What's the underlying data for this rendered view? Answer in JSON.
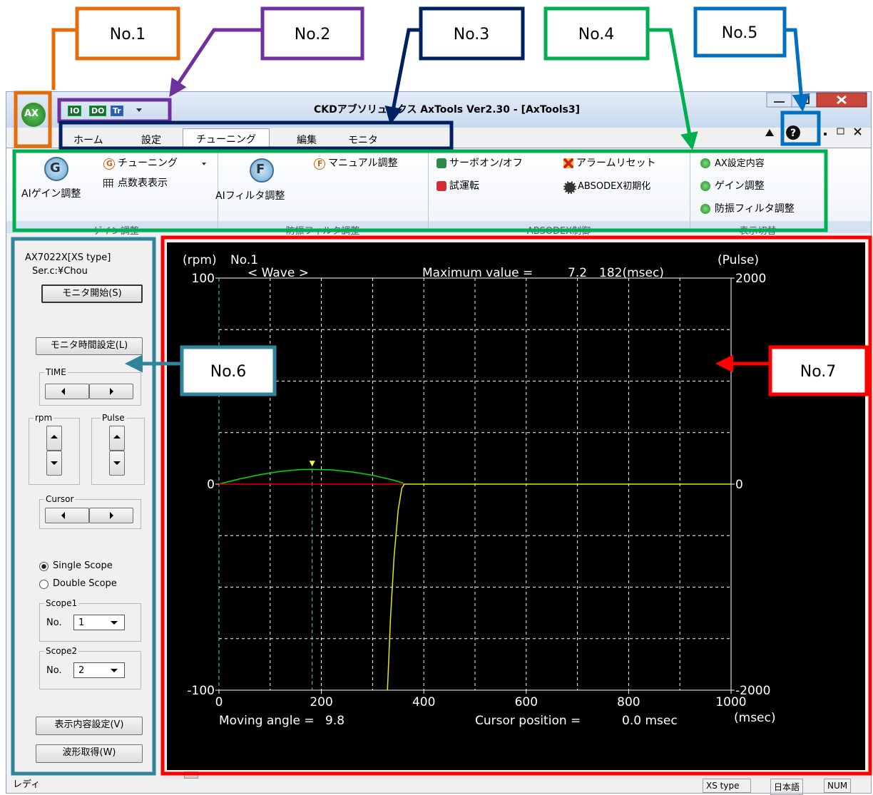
{
  "callouts": [
    "No.1",
    "No.2",
    "No.3",
    "No.4",
    "No.5",
    "No.6",
    "No.7"
  ],
  "window": {
    "logo": "AX",
    "quick_access": [
      "IO",
      "DO",
      "Tr"
    ],
    "title": "CKDアブソリュックス AxTools Ver2.30 - [AxTools3]",
    "help": "?"
  },
  "menu": {
    "tabs": [
      "ホーム",
      "設定",
      "チューニング",
      "編集",
      "モニタ"
    ],
    "selected": 2
  },
  "ribbon": {
    "groups": [
      {
        "label": "ゲイン調整",
        "items": [
          {
            "icon": "G",
            "text": "AIゲイン調整"
          },
          {
            "icon": "G",
            "text": "チューニング"
          },
          {
            "text": "点数表表示"
          }
        ]
      },
      {
        "label": "防振フィルタ調整",
        "items": [
          {
            "icon": "F",
            "text": "AIフィルタ調整"
          },
          {
            "icon": "F",
            "text": "マニュアル調整"
          }
        ]
      },
      {
        "label": "ABSODEX制御",
        "items": [
          {
            "text": "サーボオン/オフ"
          },
          {
            "text": "試運転"
          },
          {
            "text": "アラームリセット"
          },
          {
            "text": "ABSODEX初期化"
          }
        ]
      },
      {
        "label": "表示切替",
        "items": [
          {
            "text": "AX設定内容"
          },
          {
            "text": "ゲイン調整"
          },
          {
            "text": "防振フィルタ調整"
          }
        ]
      }
    ]
  },
  "panel": {
    "model": "AX7022X[XS type]",
    "serial": "Ser.c:¥Chou",
    "start_button": "モニタ開始(S)",
    "time_setting_button": "モニタ時間設定(L)",
    "time_group": "TIME",
    "rpm_group": "rpm",
    "pulse_group": "Pulse",
    "cursor_group": "Cursor",
    "scope_modes": [
      "Single Scope",
      "Double Scope"
    ],
    "selected_mode": 0,
    "scope1": {
      "label": "Scope1",
      "no_label": "No.",
      "value": 1
    },
    "scope2": {
      "label": "Scope2",
      "no_label": "No.",
      "value": 2
    },
    "display_button": "表示内容設定(V)",
    "capture_button": "波形取得(W)"
  },
  "scope": {
    "y_label": "(rpm)",
    "y2_label": "(Pulse)",
    "x_label": "(msec)",
    "channel": "No.1",
    "mode": "< Wave >",
    "max_label": "Maximum value =",
    "max_value": 7.2,
    "max_time": {
      "value": 182,
      "label": "182(msec)"
    },
    "moving_label": "Moving angle =",
    "moving_value": 9.8,
    "cursor_label": "Cursor position =",
    "cursor": {
      "value": 0,
      "label": "0.0 msec"
    },
    "xlim": [
      0,
      1000
    ],
    "ylim": [
      -100,
      100
    ],
    "y2lim": [
      -2000,
      2000
    ],
    "xticks": [
      0,
      200,
      400,
      600,
      800,
      1000
    ],
    "yticks": [
      -100,
      0,
      100
    ],
    "y2ticks": [
      -2000,
      0,
      2000
    ],
    "series": [
      {
        "color": "#00e000",
        "x": [
          0,
          40,
          80,
          120,
          160,
          182,
          220,
          260,
          300,
          340,
          360
        ],
        "values": [
          0,
          2.5,
          4.6,
          6.2,
          7.1,
          7.2,
          6.9,
          5.9,
          4.3,
          2.0,
          0.5
        ]
      },
      {
        "color": "#e00000",
        "x": [
          0,
          360
        ],
        "values": [
          0,
          0
        ]
      },
      {
        "color": "#e8e800",
        "axis": "y2",
        "x": [
          329,
          335,
          342,
          350,
          357,
          362,
          1000
        ],
        "values": [
          -2000,
          -1300,
          -700,
          -250,
          -40,
          0,
          0
        ]
      }
    ]
  },
  "status": {
    "text": "レディ",
    "type": "XS type",
    "language": "日本語",
    "num": "NUM"
  }
}
